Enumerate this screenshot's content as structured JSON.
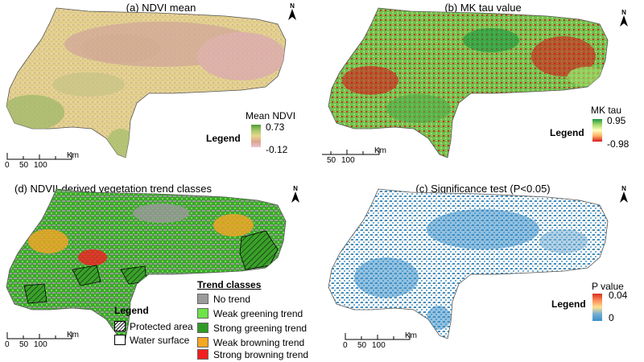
{
  "panels": {
    "a": {
      "title": "(a) NDVI mean",
      "legend_label": "Legend",
      "ramp_title": "Mean NDVI",
      "ramp_max": "0.73",
      "ramp_min": "-0.12",
      "ramp_colors": [
        "#4f9a3a",
        "#a7c86a",
        "#e8d68e",
        "#dca58a",
        "#e9c3d8"
      ]
    },
    "b": {
      "title": "(b) MK tau value",
      "legend_label": "Legend",
      "ramp_title": "MK tau",
      "ramp_max": "0.95",
      "ramp_min": "-0.98",
      "ramp_colors": [
        "#1a9641",
        "#a6d96a",
        "#ffffbf",
        "#fdae61",
        "#d7191c"
      ]
    },
    "d": {
      "title": "(d) NDVII-derived vegetation trend classes",
      "legend_label": "Legend",
      "protected_area": "Protected area",
      "water_surface": "Water surface",
      "trend_title": "Trend classes",
      "trend_classes": [
        {
          "label": "No trend",
          "color": "#9a9a9a"
        },
        {
          "label": "Weak greening trend",
          "color": "#6ee34a"
        },
        {
          "label": "Strong greening trend",
          "color": "#2f9a24"
        },
        {
          "label": "Weak browning trend",
          "color": "#f5a623"
        },
        {
          "label": "Strong browning trend",
          "color": "#f21f1f"
        }
      ]
    },
    "c": {
      "title": "(c) Significance test (P<0.05)",
      "legend_label": "Legend",
      "ramp_title": "P value",
      "ramp_max": "0.04",
      "ramp_min": "0",
      "ramp_colors": [
        "#d7301f",
        "#fc8d59",
        "#fee090",
        "#74add1",
        "#3a8fc9"
      ]
    }
  },
  "scalebar": {
    "ticks": [
      "0",
      "50",
      "100"
    ],
    "unit": "Km"
  },
  "north_label": "N"
}
